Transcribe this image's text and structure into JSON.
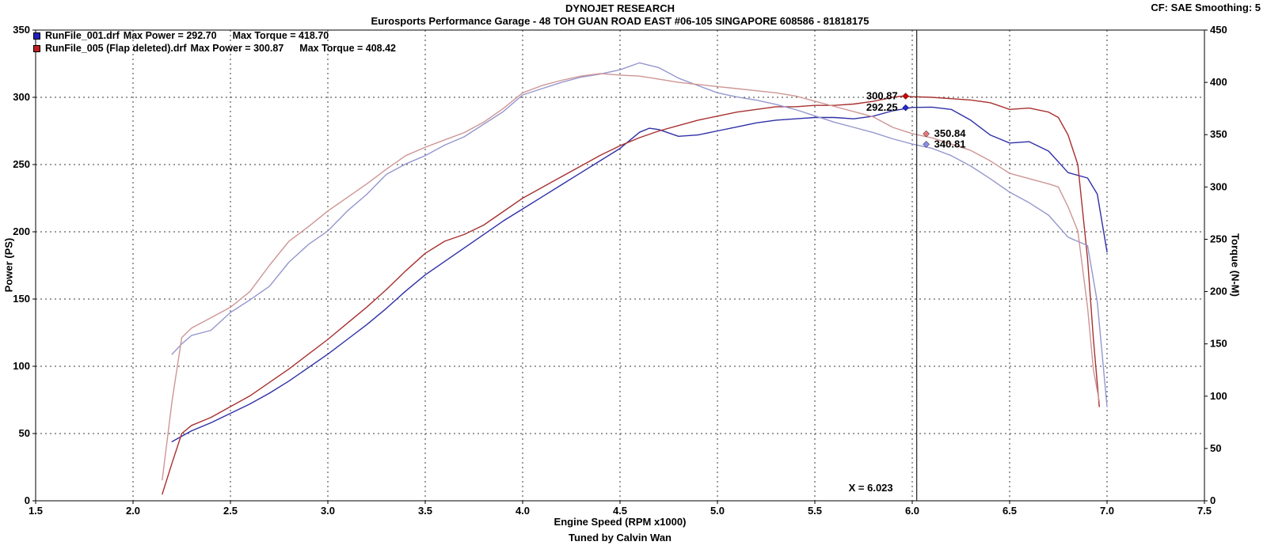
{
  "chart_data": {
    "type": "line",
    "title": "DYNOJET RESEARCH",
    "subtitle": "Eurosports Performance Garage - 48 TOH GUAN ROAD EAST #06-105 SINGAPORE 608586 - 81818175",
    "corner_note": "CF: SAE  Smoothing: 5",
    "xlabel": "Engine Speed (RPM x1000)",
    "ylabel_left": "Power (PS)",
    "ylabel_right": "Torque (N-M)",
    "footer": "Tuned by Calvin Wan",
    "grid": "dashed",
    "xlim": [
      1.5,
      7.5
    ],
    "ylim_left": [
      0,
      350
    ],
    "ylim_right": [
      0,
      450
    ],
    "xticks": {
      "values": [
        1.5,
        2.0,
        2.5,
        3.0,
        3.5,
        4.0,
        4.5,
        5.0,
        5.5,
        6.0,
        6.5,
        7.0,
        7.5
      ],
      "labels": [
        "1.5",
        "2.0",
        "2.5",
        "3.0",
        "3.5",
        "4.0",
        "4.5",
        "5.0",
        "5.5",
        "6.0",
        "6.5",
        "7.0",
        "7.5"
      ]
    },
    "yticks_left": {
      "values": [
        0,
        50,
        100,
        150,
        200,
        250,
        300,
        350
      ],
      "labels": [
        "0",
        "50",
        "100",
        "150",
        "200",
        "250",
        "300",
        "350"
      ]
    },
    "yticks_right": {
      "values": [
        0,
        50,
        100,
        150,
        200,
        250,
        300,
        350,
        400,
        450
      ],
      "labels": [
        "0",
        "50",
        "100",
        "150",
        "200",
        "250",
        "300",
        "350",
        "400",
        "450"
      ]
    },
    "colors": {
      "grid": "#3a3a3a",
      "cursor": "#222222"
    },
    "legend": [
      {
        "file": "RunFile_001.drf",
        "max_power": "Max Power = 292.70",
        "max_torque": "Max Torque = 418.70",
        "color": "#2020bb"
      },
      {
        "file": "RunFile_005 (Flap deleted).drf",
        "max_power": "Max Power = 300.87",
        "max_torque": "Max Torque = 408.42",
        "color": "#bb2020"
      }
    ],
    "series": [
      {
        "id": "run1_power",
        "name": "RunFile_001 Power (PS)",
        "axis": "left",
        "color": "#2f2fa8",
        "x": [
          2.2,
          2.3,
          2.4,
          2.5,
          2.6,
          2.7,
          2.8,
          2.9,
          3.0,
          3.1,
          3.2,
          3.3,
          3.4,
          3.5,
          3.6,
          3.7,
          3.8,
          3.9,
          4.0,
          4.1,
          4.2,
          4.3,
          4.4,
          4.5,
          4.6,
          4.65,
          4.7,
          4.8,
          4.9,
          5.0,
          5.1,
          5.2,
          5.3,
          5.4,
          5.5,
          5.6,
          5.7,
          5.8,
          5.9,
          6.0,
          6.1,
          6.2,
          6.3,
          6.4,
          6.5,
          6.6,
          6.7,
          6.8,
          6.9,
          6.95,
          7.0
        ],
        "y": [
          44,
          52,
          58,
          65,
          72,
          80,
          89,
          99,
          109,
          120,
          131,
          143,
          156,
          168,
          178,
          188,
          198,
          208,
          217,
          226,
          235,
          244,
          253,
          262,
          274,
          277,
          276,
          271,
          272,
          275,
          278,
          281,
          283,
          284,
          285,
          285,
          284,
          286,
          290,
          292.5,
          292.7,
          291,
          283,
          272,
          266,
          267,
          260,
          244,
          240,
          228,
          185
        ]
      },
      {
        "id": "run5_power",
        "name": "RunFile_005 Power (PS)",
        "axis": "left",
        "color": "#a83030",
        "x": [
          2.15,
          2.2,
          2.25,
          2.3,
          2.4,
          2.5,
          2.6,
          2.7,
          2.8,
          2.9,
          3.0,
          3.1,
          3.2,
          3.3,
          3.4,
          3.5,
          3.6,
          3.7,
          3.8,
          3.9,
          4.0,
          4.1,
          4.2,
          4.3,
          4.4,
          4.5,
          4.6,
          4.7,
          4.8,
          4.9,
          5.0,
          5.1,
          5.2,
          5.3,
          5.4,
          5.5,
          5.6,
          5.7,
          5.8,
          5.9,
          5.95,
          6.0,
          6.1,
          6.2,
          6.3,
          6.4,
          6.5,
          6.6,
          6.7,
          6.75,
          6.8,
          6.85,
          6.9,
          6.93,
          6.96
        ],
        "y": [
          5,
          28,
          50,
          56,
          62,
          70,
          78,
          88,
          98,
          109,
          120,
          132,
          144,
          157,
          171,
          184,
          193,
          198,
          205,
          215,
          225,
          233,
          241,
          249,
          257,
          264,
          270,
          275,
          279,
          283,
          286,
          289,
          291,
          293,
          293,
          294,
          294,
          295,
          297,
          300,
          300.87,
          300.5,
          300,
          299,
          298,
          296,
          291,
          292,
          289,
          285,
          272,
          250,
          180,
          120,
          70
        ]
      },
      {
        "id": "run1_torque",
        "name": "RunFile_001 Torque (N-M)",
        "axis": "right",
        "color": "#9597ce",
        "x": [
          2.2,
          2.25,
          2.3,
          2.4,
          2.5,
          2.6,
          2.7,
          2.8,
          2.9,
          3.0,
          3.1,
          3.2,
          3.3,
          3.4,
          3.5,
          3.6,
          3.7,
          3.8,
          3.9,
          4.0,
          4.1,
          4.2,
          4.3,
          4.4,
          4.5,
          4.6,
          4.7,
          4.8,
          4.9,
          5.0,
          5.1,
          5.2,
          5.3,
          5.4,
          5.5,
          5.6,
          5.7,
          5.8,
          5.9,
          6.0,
          6.1,
          6.2,
          6.3,
          6.4,
          6.5,
          6.6,
          6.7,
          6.8,
          6.85,
          6.9,
          6.95,
          7.0
        ],
        "y": [
          140,
          150,
          158,
          163,
          180,
          192,
          205,
          228,
          245,
          258,
          277,
          293,
          312,
          322,
          330,
          340,
          348,
          360,
          372,
          388,
          394,
          400,
          405,
          408,
          412,
          418.7,
          414,
          404,
          397,
          390,
          386,
          383,
          379,
          374,
          368,
          362,
          357,
          352,
          346,
          341,
          337,
          330,
          320,
          308,
          295,
          285,
          273,
          252,
          248,
          244,
          190,
          90
        ]
      },
      {
        "id": "run5_torque",
        "name": "RunFile_005 Torque (N-M)",
        "axis": "right",
        "color": "#ce9595",
        "x": [
          2.15,
          2.2,
          2.25,
          2.3,
          2.4,
          2.5,
          2.6,
          2.7,
          2.8,
          2.9,
          3.0,
          3.1,
          3.2,
          3.3,
          3.4,
          3.5,
          3.6,
          3.7,
          3.8,
          3.9,
          4.0,
          4.1,
          4.2,
          4.3,
          4.4,
          4.5,
          4.6,
          4.7,
          4.8,
          4.9,
          5.0,
          5.1,
          5.2,
          5.3,
          5.4,
          5.5,
          5.6,
          5.7,
          5.8,
          5.9,
          6.0,
          6.1,
          6.2,
          6.3,
          6.4,
          6.5,
          6.6,
          6.7,
          6.75,
          6.8,
          6.85,
          6.9,
          6.93,
          6.96
        ],
        "y": [
          20,
          95,
          156,
          165,
          175,
          185,
          200,
          225,
          248,
          262,
          277,
          290,
          303,
          317,
          330,
          338,
          345,
          352,
          362,
          375,
          390,
          397,
          402,
          406,
          408.42,
          407,
          406,
          403,
          400,
          398,
          396,
          394,
          392,
          390,
          387,
          382,
          377,
          372,
          367,
          357,
          351,
          347,
          341,
          335,
          325,
          313,
          308,
          303,
          300,
          281,
          258,
          185,
          125,
          95
        ]
      }
    ],
    "cursor": {
      "x": 6.023,
      "label": "X = 6.023",
      "readouts": [
        {
          "value": "300.87",
          "axis": "left",
          "y": 300.87,
          "color": "#d40000",
          "side": "left"
        },
        {
          "value": "292.25",
          "axis": "left",
          "y": 292.25,
          "color": "#2828d4",
          "side": "left"
        },
        {
          "value": "350.84",
          "axis": "right",
          "y": 350.84,
          "color": "#e87878",
          "side": "right"
        },
        {
          "value": "340.81",
          "axis": "right",
          "y": 340.81,
          "color": "#8c8ce8",
          "side": "right"
        }
      ]
    }
  }
}
